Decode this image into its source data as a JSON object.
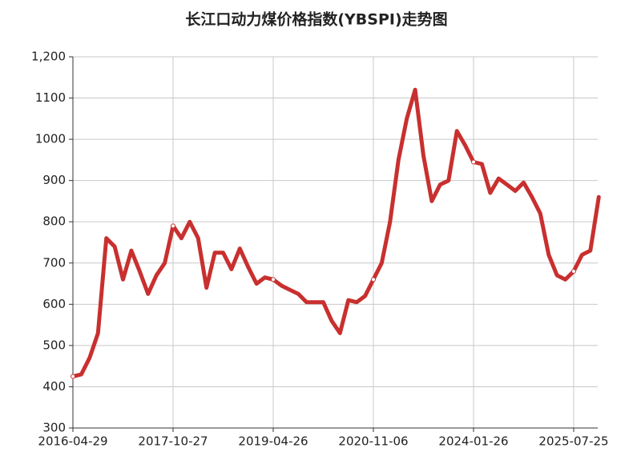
{
  "chart_data": {
    "type": "line",
    "title": "长江口动力煤价格指数(YBSPI)走势图",
    "categories": [
      "2016-04-29",
      null,
      null,
      null,
      null,
      null,
      null,
      null,
      null,
      null,
      null,
      null,
      "2017-10-27",
      null,
      null,
      null,
      null,
      null,
      null,
      null,
      null,
      null,
      null,
      null,
      "2019-04-26",
      null,
      null,
      null,
      null,
      null,
      null,
      null,
      null,
      null,
      null,
      null,
      "2020-11-06",
      null,
      null,
      null,
      null,
      null,
      null,
      null,
      null,
      null,
      null,
      null,
      "2024-01-26",
      null,
      null,
      null,
      null,
      null,
      null,
      null,
      null,
      null,
      null,
      null,
      "2025-07-25",
      null,
      null,
      null
    ],
    "series": [
      {
        "color": "#c8302f",
        "values": [
          425,
          430,
          470,
          530,
          760,
          740,
          660,
          730,
          680,
          625,
          670,
          700,
          790,
          760,
          800,
          760,
          640,
          725,
          725,
          685,
          735,
          690,
          650,
          665,
          660,
          645,
          635,
          625,
          605,
          605,
          605,
          560,
          530,
          610,
          605,
          620,
          660,
          700,
          800,
          950,
          1050,
          1120,
          960,
          850,
          890,
          900,
          1020,
          985,
          945,
          940,
          870,
          905,
          890,
          875,
          895,
          860,
          820,
          720,
          670,
          660,
          680,
          720,
          730,
          860
        ]
      }
    ],
    "ylim": [
      300,
      1200
    ],
    "yticks": [
      300,
      400,
      500,
      600,
      700,
      800,
      900,
      1000,
      1100,
      {
        "value": 1200,
        "label": "1,200"
      }
    ],
    "grid": true
  }
}
